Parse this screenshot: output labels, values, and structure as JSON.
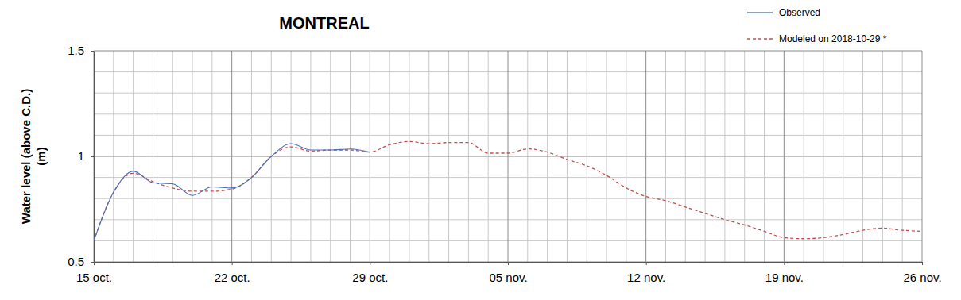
{
  "chart_data": {
    "type": "line",
    "title": "MONTREAL",
    "y_label": [
      "Water level (above C.D.)",
      "(m)"
    ],
    "categories": [
      "15 oct.",
      null,
      null,
      null,
      null,
      null,
      null,
      "22 oct.",
      null,
      null,
      null,
      null,
      null,
      null,
      "29 oct.",
      null,
      null,
      null,
      null,
      null,
      null,
      "05 nov.",
      null,
      null,
      null,
      null,
      null,
      null,
      "12 nov.",
      null,
      null,
      null,
      null,
      null,
      null,
      "19 nov.",
      null,
      null,
      null,
      null,
      null,
      null,
      "26 nov."
    ],
    "series": [
      {
        "name": "Observed",
        "color": "#4a6fb5",
        "line_style": "solid",
        "values": [
          0.6,
          0.83,
          0.93,
          0.875,
          0.87,
          0.815,
          0.855,
          0.85,
          0.9,
          1.0,
          1.06,
          1.03,
          1.03,
          1.035,
          1.02,
          null,
          null,
          null,
          null,
          null,
          null,
          null,
          null,
          null,
          null,
          null,
          null,
          null,
          null,
          null,
          null,
          null,
          null,
          null,
          null,
          null,
          null,
          null,
          null,
          null,
          null,
          null,
          null
        ]
      },
      {
        "name": "Modeled on 2018-10-29 *",
        "color": "#c0504d",
        "line_style": "dashed",
        "values": [
          0.6,
          0.83,
          0.92,
          0.88,
          0.85,
          0.835,
          0.835,
          0.845,
          0.9,
          1.0,
          1.045,
          1.025,
          1.03,
          1.03,
          1.02,
          1.055,
          1.07,
          1.06,
          1.065,
          1.065,
          1.015,
          1.015,
          1.035,
          1.02,
          0.985,
          0.955,
          0.91,
          0.85,
          0.81,
          0.79,
          0.76,
          0.73,
          0.7,
          0.675,
          0.645,
          0.615,
          0.61,
          0.615,
          0.63,
          0.65,
          0.66,
          0.65,
          0.645
        ]
      }
    ],
    "ylim": [
      0.5,
      1.5
    ],
    "yticks": [
      0.5,
      1,
      1.5
    ],
    "grid": true,
    "legend": "upper right"
  }
}
